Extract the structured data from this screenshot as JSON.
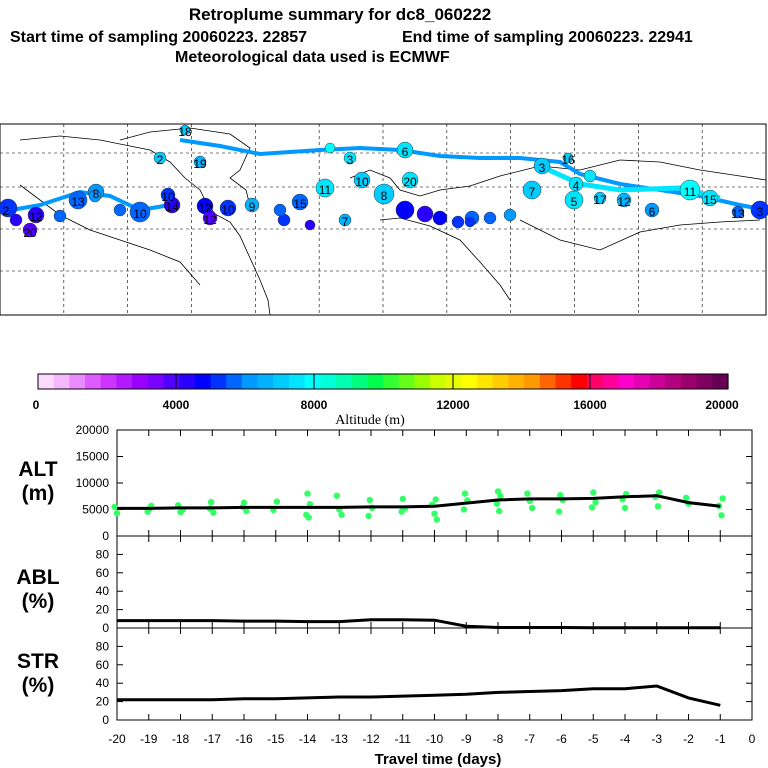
{
  "header": {
    "title": "Retroplume summary for dc8_060222",
    "start_label": "Start time of sampling 20060223. 22857",
    "end_label": "End time of sampling 20060223. 22941",
    "met_label": "Meteorological data used is ECMWF"
  },
  "map": {
    "point_labels": [
      "2",
      "12",
      "20",
      "13",
      "8",
      "10",
      "14",
      "10",
      "12",
      "12",
      "10",
      "9",
      "15",
      "11",
      "10",
      "8",
      "20",
      "7",
      "6",
      "7",
      "3",
      "5",
      "4",
      "17",
      "12",
      "6",
      "11",
      "15",
      "13",
      "3",
      "3",
      "2",
      "19",
      "18",
      "16"
    ]
  },
  "colorbar": {
    "title": "Altitude (m)",
    "ticks": [
      "0",
      "4000",
      "8000",
      "12000",
      "16000",
      "20000"
    ],
    "colors": [
      "#ffd9ff",
      "#f5b8ff",
      "#ea8cff",
      "#de5cff",
      "#cc33ff",
      "#b319ff",
      "#9900ff",
      "#7a00ff",
      "#5200ff",
      "#2900ff",
      "#0000ff",
      "#0033ff",
      "#0066ff",
      "#0099ff",
      "#00b2ff",
      "#00ccff",
      "#00e5ff",
      "#00ffff",
      "#00ffd9",
      "#00ffb3",
      "#00ff80",
      "#00ff4d",
      "#33ff33",
      "#66ff1a",
      "#99ff00",
      "#ccff00",
      "#e5ff00",
      "#ffff00",
      "#ffe500",
      "#ffcc00",
      "#ffb300",
      "#ff9900",
      "#ff6600",
      "#ff3300",
      "#ff0000",
      "#ff0066",
      "#ff0099",
      "#ff00cc",
      "#e600b3",
      "#cc0099",
      "#b30080",
      "#99006b",
      "#800060",
      "#660055"
    ]
  },
  "chart_data": [
    {
      "type": "line",
      "panel": "ALT",
      "label_line1": "ALT",
      "label_line2": "(m)",
      "ylim": [
        0,
        20000
      ],
      "ytick_labels": [
        "0",
        "5000",
        "10000",
        "15000",
        "20000"
      ],
      "x": [
        -20,
        -19,
        -18,
        -17,
        -16,
        -15,
        -14,
        -13,
        -12,
        -11,
        -10,
        -9,
        -8,
        -7,
        -6,
        -5,
        -4,
        -3,
        -2,
        -1
      ],
      "series": [
        {
          "name": "median",
          "values": [
            5200,
            5200,
            5300,
            5300,
            5400,
            5400,
            5400,
            5400,
            5500,
            5500,
            5600,
            6200,
            6800,
            7000,
            7000,
            7100,
            7400,
            7600,
            6300,
            5600
          ]
        }
      ],
      "scatter": {
        "x": [
          -20,
          -20,
          -19,
          -19,
          -19,
          -18,
          -18,
          -18,
          -17,
          -17,
          -17,
          -16,
          -16,
          -16,
          -15,
          -15,
          -14,
          -14,
          -14,
          -14,
          -13,
          -13,
          -13,
          -12,
          -12,
          -12,
          -11,
          -11,
          -11,
          -10,
          -10,
          -10,
          -10,
          -9,
          -9,
          -9,
          -8,
          -8,
          -8,
          -8,
          -7,
          -7,
          -7,
          -6,
          -6,
          -6,
          -5,
          -5,
          -5,
          -4,
          -4,
          -4,
          -3,
          -3,
          -3,
          -2,
          -2,
          -1,
          -1,
          -1
        ],
        "y": [
          5500,
          4300,
          5700,
          4600,
          5200,
          5800,
          4500,
          5000,
          6400,
          4400,
          5200,
          6300,
          4700,
          5500,
          6500,
          4900,
          8000,
          6000,
          4000,
          3500,
          7600,
          5000,
          4000,
          6800,
          5300,
          3800,
          7000,
          5200,
          4600,
          6900,
          5900,
          4200,
          3100,
          8000,
          6700,
          5000,
          8400,
          7500,
          6100,
          4700,
          8000,
          6600,
          5300,
          7700,
          6800,
          4600,
          8200,
          6400,
          5400,
          7900,
          6900,
          5300,
          8200,
          7400,
          5600,
          7200,
          6100,
          7100,
          5700,
          3900
        ]
      },
      "xlabel": ""
    },
    {
      "type": "line",
      "panel": "ABL",
      "label_line1": "ABL",
      "label_line2": "(%)",
      "ylim": [
        0,
        100
      ],
      "ytick_labels": [
        "0",
        "20",
        "40",
        "60",
        "80"
      ],
      "x": [
        -20,
        -19,
        -18,
        -17,
        -16,
        -15,
        -14,
        -13,
        -12,
        -11,
        -10,
        -9,
        -8,
        -7,
        -6,
        -5,
        -4,
        -3,
        -2,
        -1
      ],
      "series": [
        {
          "name": "ABL",
          "values": [
            8,
            8,
            8,
            8,
            7.5,
            7.5,
            7,
            7,
            9,
            9,
            8.5,
            2,
            0.5,
            0.5,
            0.5,
            0.3,
            0.3,
            0.3,
            0.3,
            0.3
          ]
        }
      ],
      "xlabel": ""
    },
    {
      "type": "line",
      "panel": "STR",
      "label_line1": "STR",
      "label_line2": "(%)",
      "ylim": [
        0,
        100
      ],
      "ytick_labels": [
        "0",
        "20",
        "40",
        "60",
        "80"
      ],
      "x": [
        -20,
        -19,
        -18,
        -17,
        -16,
        -15,
        -14,
        -13,
        -12,
        -11,
        -10,
        -9,
        -8,
        -7,
        -6,
        -5,
        -4,
        -3,
        -2,
        -1
      ],
      "series": [
        {
          "name": "STR",
          "values": [
            22,
            22,
            22,
            22,
            23,
            23,
            24,
            25,
            25,
            26,
            27,
            28,
            30,
            31,
            32,
            34,
            34,
            37,
            24,
            16
          ]
        }
      ],
      "xlim": [
        -20,
        0
      ],
      "xtick_labels": [
        "-20",
        "-19",
        "-18",
        "-17",
        "-16",
        "-15",
        "-14",
        "-13",
        "-12",
        "-11",
        "-10",
        "-9",
        "-8",
        "-7",
        "-6",
        "-5",
        "-4",
        "-3",
        "-2",
        "-1",
        "0"
      ],
      "xlabel": "Travel time (days)"
    }
  ]
}
